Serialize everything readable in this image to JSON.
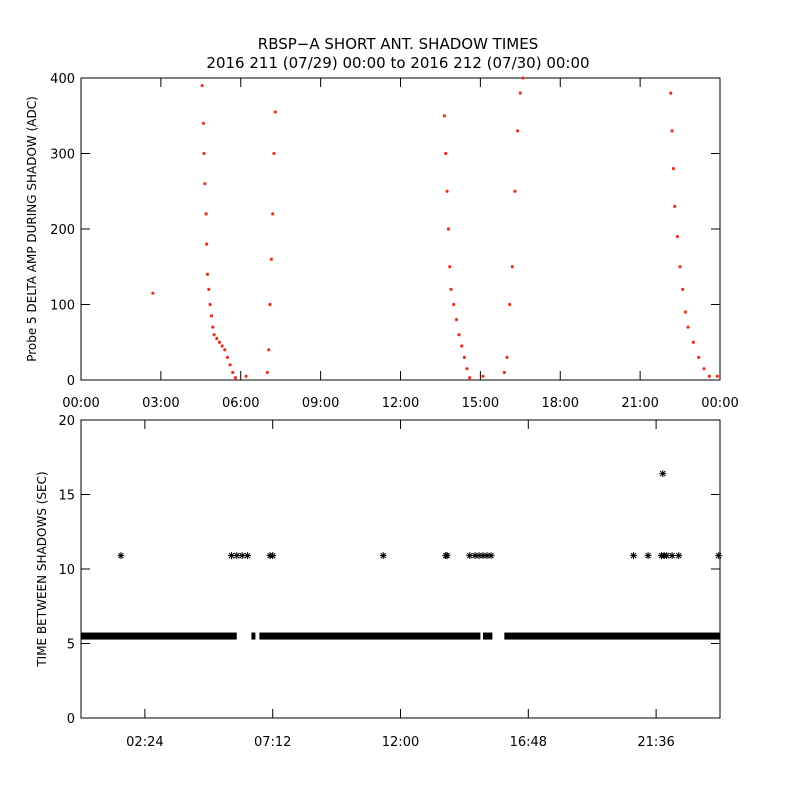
{
  "title": "RBSP−A SHORT ANT. SHADOW TIMES",
  "subtitle": "2016 211 (07/29) 00:00 to 2016 212 (07/30) 00:00",
  "colors": {
    "scatter": "#e8321e",
    "axes": "#000000",
    "marks": "#000000"
  },
  "chart_data": [
    {
      "type": "scatter",
      "ylabel": "Probe 5 DELTA AMP DURING SHADOW (ADC)",
      "xlabel": "",
      "xunit": "hours",
      "xlim": [
        0,
        24
      ],
      "ylim": [
        0,
        400
      ],
      "xticks": [
        0,
        3,
        6,
        9,
        12,
        15,
        18,
        21,
        24
      ],
      "xtick_labels": [
        "00:00",
        "03:00",
        "06:00",
        "09:00",
        "12:00",
        "15:00",
        "18:00",
        "21:00",
        "00:00"
      ],
      "yticks": [
        0,
        100,
        200,
        300,
        400
      ],
      "ytick_labels": [
        "0",
        "100",
        "200",
        "300",
        "400"
      ],
      "points": [
        [
          2.7,
          115
        ],
        [
          4.55,
          390
        ],
        [
          4.6,
          340
        ],
        [
          4.62,
          300
        ],
        [
          4.65,
          260
        ],
        [
          4.7,
          220
        ],
        [
          4.72,
          180
        ],
        [
          4.75,
          140
        ],
        [
          4.8,
          120
        ],
        [
          4.85,
          100
        ],
        [
          4.9,
          85
        ],
        [
          4.95,
          70
        ],
        [
          5.0,
          60
        ],
        [
          5.1,
          55
        ],
        [
          5.2,
          50
        ],
        [
          5.3,
          45
        ],
        [
          5.4,
          40
        ],
        [
          5.5,
          30
        ],
        [
          5.6,
          20
        ],
        [
          5.7,
          10
        ],
        [
          5.8,
          3
        ],
        [
          6.2,
          5
        ],
        [
          7.0,
          10
        ],
        [
          7.05,
          40
        ],
        [
          7.1,
          100
        ],
        [
          7.15,
          160
        ],
        [
          7.2,
          220
        ],
        [
          7.25,
          300
        ],
        [
          7.3,
          355
        ],
        [
          13.65,
          350
        ],
        [
          13.7,
          300
        ],
        [
          13.75,
          250
        ],
        [
          13.8,
          200
        ],
        [
          13.85,
          150
        ],
        [
          13.9,
          120
        ],
        [
          14.0,
          100
        ],
        [
          14.1,
          80
        ],
        [
          14.2,
          60
        ],
        [
          14.3,
          45
        ],
        [
          14.4,
          30
        ],
        [
          14.5,
          15
        ],
        [
          14.6,
          3
        ],
        [
          15.1,
          5
        ],
        [
          15.9,
          10
        ],
        [
          16.0,
          30
        ],
        [
          16.1,
          100
        ],
        [
          16.2,
          150
        ],
        [
          16.3,
          250
        ],
        [
          16.4,
          330
        ],
        [
          16.5,
          380
        ],
        [
          16.6,
          400
        ],
        [
          22.15,
          380
        ],
        [
          22.2,
          330
        ],
        [
          22.25,
          280
        ],
        [
          22.3,
          230
        ],
        [
          22.4,
          190
        ],
        [
          22.5,
          150
        ],
        [
          22.6,
          120
        ],
        [
          22.7,
          90
        ],
        [
          22.8,
          70
        ],
        [
          23.0,
          50
        ],
        [
          23.2,
          30
        ],
        [
          23.4,
          15
        ],
        [
          23.6,
          5
        ],
        [
          23.9,
          5
        ]
      ]
    },
    {
      "type": "scatter",
      "ylabel": "TIME BETWEEN SHADOWS (SEC)",
      "xlabel": "",
      "xunit": "hours",
      "xlim": [
        0,
        24
      ],
      "ylim": [
        0,
        20
      ],
      "xticks": [
        2.4,
        7.2,
        12.0,
        16.8,
        21.6
      ],
      "xtick_labels": [
        "02:24",
        "07:12",
        "12:00",
        "16:48",
        "21:36"
      ],
      "yticks": [
        0,
        5,
        10,
        15,
        20
      ],
      "ytick_labels": [
        "0",
        "5",
        "10",
        "15",
        "20"
      ],
      "baseline": {
        "y": 5.5,
        "segments": [
          [
            0.0,
            5.85
          ],
          [
            6.4,
            6.55
          ],
          [
            6.7,
            15.0
          ],
          [
            15.1,
            15.45
          ],
          [
            15.9,
            24.0
          ]
        ]
      },
      "points": [
        [
          1.5,
          10.9
        ],
        [
          5.65,
          10.9
        ],
        [
          5.85,
          10.9
        ],
        [
          6.05,
          10.9
        ],
        [
          6.25,
          10.9
        ],
        [
          7.1,
          10.9
        ],
        [
          7.2,
          10.9
        ],
        [
          11.35,
          10.9
        ],
        [
          13.7,
          10.9
        ],
        [
          13.75,
          10.9
        ],
        [
          14.6,
          10.9
        ],
        [
          14.8,
          10.9
        ],
        [
          14.95,
          10.9
        ],
        [
          15.1,
          10.9
        ],
        [
          15.25,
          10.9
        ],
        [
          15.4,
          10.9
        ],
        [
          20.75,
          10.9
        ],
        [
          21.3,
          10.9
        ],
        [
          21.8,
          10.9
        ],
        [
          21.9,
          10.9
        ],
        [
          22.0,
          10.9
        ],
        [
          22.2,
          10.9
        ],
        [
          22.45,
          10.9
        ],
        [
          23.95,
          10.9
        ],
        [
          21.85,
          16.4
        ]
      ]
    }
  ]
}
